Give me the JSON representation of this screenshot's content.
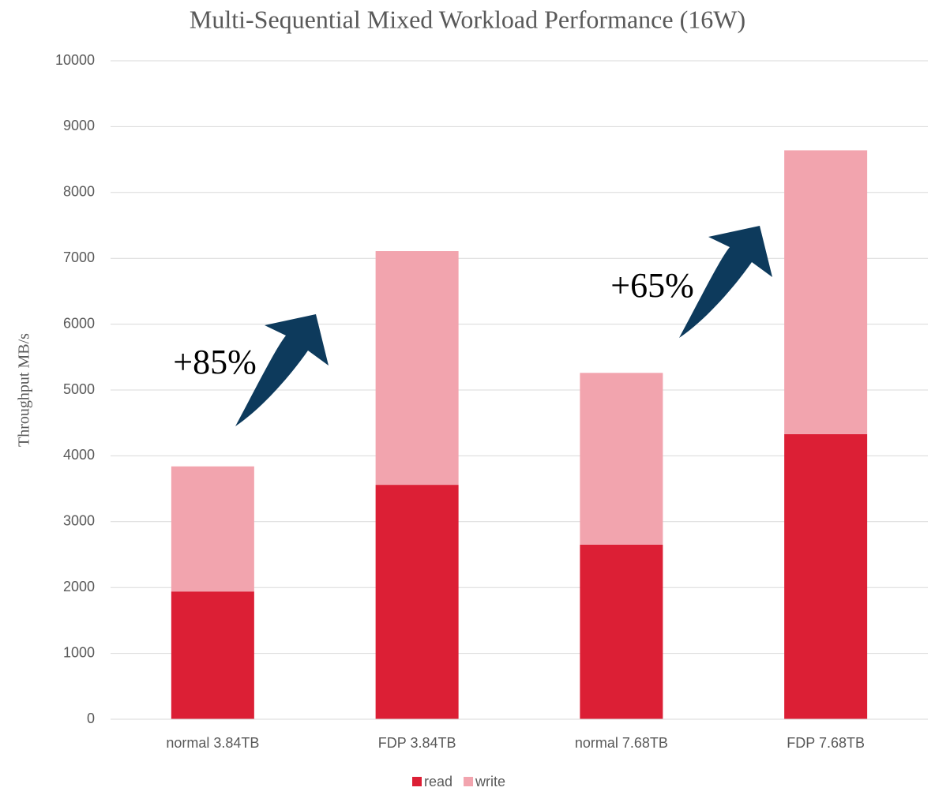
{
  "chart_data": {
    "type": "stacked_bar",
    "title": "Multi-Sequential Mixed Workload Performance (16W)",
    "y_label": "Throughput MB/s",
    "categories": [
      "normal 3.84TB",
      "FDP 3.84TB",
      "normal 7.68TB",
      "FDP 7.68TB"
    ],
    "series": [
      {
        "name": "read",
        "color": "#dc1f35",
        "values": [
          1940,
          3560,
          2650,
          4330
        ]
      },
      {
        "name": "write",
        "color": "#f2a4ae",
        "values": [
          1900,
          3550,
          2610,
          4310
        ]
      }
    ],
    "ylim": [
      0,
      10000
    ],
    "yticks": [
      0,
      1000,
      2000,
      3000,
      4000,
      5000,
      6000,
      7000,
      8000,
      9000,
      10000
    ],
    "grid": true,
    "legend": "bottom",
    "annotations": [
      "+85%",
      "+65%"
    ]
  }
}
